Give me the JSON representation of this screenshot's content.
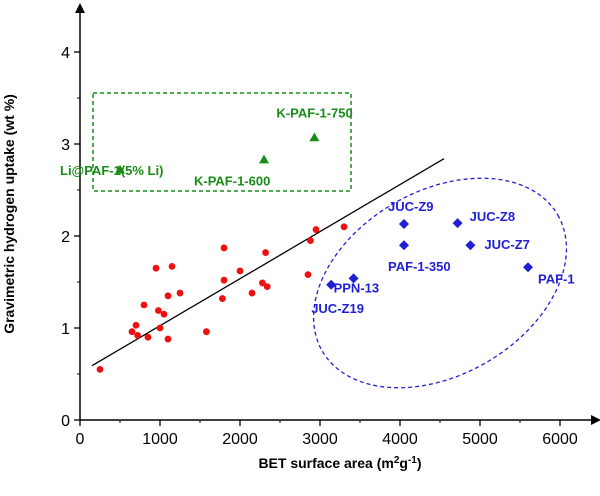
{
  "chart_data": {
    "type": "scatter",
    "xlabel_main": "BET surface area (m",
    "xlabel_sup1": "2",
    "xlabel_mid": "g",
    "xlabel_sup2": "-1",
    "xlabel_end": ")",
    "ylabel": "Gravimetric hydrogen uptake (wt %)",
    "xlim": [
      0,
      6500
    ],
    "ylim": [
      0,
      4.5
    ],
    "x_ticks": [
      "0",
      "1000",
      "2000",
      "3000",
      "4000",
      "5000",
      "6000"
    ],
    "y_ticks": [
      "0",
      "1",
      "2",
      "3",
      "4"
    ],
    "colors": {
      "red": "#ee1111",
      "green": "#1a8c1a",
      "blue": "#1f1fd6",
      "line": "#000000"
    },
    "series": [
      {
        "marker": "circle",
        "color": "#ee1111",
        "points": [
          [
            250,
            0.55
          ],
          [
            650,
            0.96
          ],
          [
            700,
            1.03
          ],
          [
            720,
            0.92
          ],
          [
            800,
            1.25
          ],
          [
            850,
            0.9
          ],
          [
            950,
            1.65
          ],
          [
            980,
            1.19
          ],
          [
            1000,
            1.0
          ],
          [
            1050,
            1.15
          ],
          [
            1100,
            1.35
          ],
          [
            1100,
            0.88
          ],
          [
            1150,
            1.67
          ],
          [
            1250,
            1.38
          ],
          [
            1580,
            0.96
          ],
          [
            1780,
            1.32
          ],
          [
            1800,
            1.52
          ],
          [
            1800,
            1.87
          ],
          [
            2000,
            1.62
          ],
          [
            2150,
            1.38
          ],
          [
            2280,
            1.49
          ],
          [
            2320,
            1.82
          ],
          [
            2340,
            1.45
          ],
          [
            2850,
            1.58
          ],
          [
            2880,
            1.95
          ],
          [
            2950,
            2.07
          ],
          [
            3300,
            2.1
          ]
        ]
      },
      {
        "marker": "triangle",
        "color": "#1a8c1a",
        "points": [
          {
            "x": 500,
            "y": 2.72,
            "label": "Li@PAF-1(5% Li)"
          },
          {
            "x": 2300,
            "y": 2.83,
            "label": "K-PAF-1-600"
          },
          {
            "x": 2930,
            "y": 3.07,
            "label": "K-PAF-1-750"
          }
        ]
      },
      {
        "marker": "diamond",
        "color": "#1f1fd6",
        "points": [
          {
            "x": 4050,
            "y": 2.13,
            "label": "JUC-Z9"
          },
          {
            "x": 4720,
            "y": 2.14,
            "label": "JUC-Z8"
          },
          {
            "x": 4050,
            "y": 1.9,
            "label": "PAF-1-350"
          },
          {
            "x": 4880,
            "y": 1.9,
            "label": "JUC-Z7"
          },
          {
            "x": 5600,
            "y": 1.66,
            "label": "PAF-1"
          },
          {
            "x": 3420,
            "y": 1.54,
            "label": "PPN-13"
          },
          {
            "x": 3140,
            "y": 1.47,
            "label": "JUC-Z19"
          }
        ]
      }
    ],
    "fit_line": {
      "x": [
        150,
        4550
      ],
      "y": [
        0.59,
        2.84
      ]
    }
  }
}
